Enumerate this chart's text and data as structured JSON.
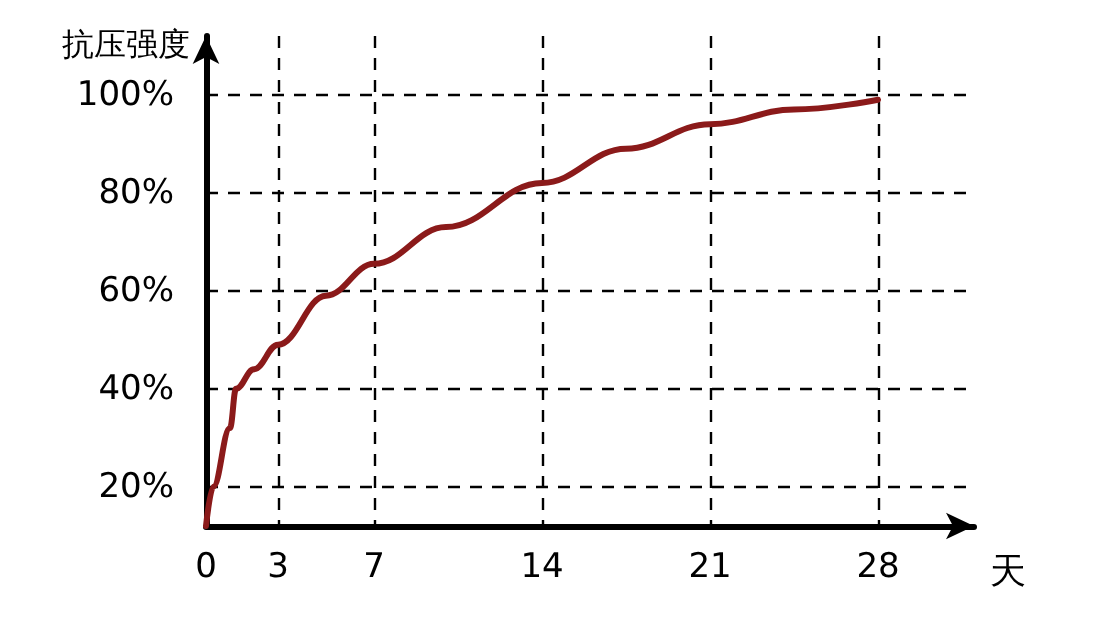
{
  "chart_data": {
    "type": "line",
    "xlabel": "天",
    "ylabel": "抗压强度",
    "x": [
      0,
      0.3,
      1,
      1.25,
      2,
      3,
      5,
      7,
      10,
      14,
      17.5,
      21,
      24.5,
      28
    ],
    "series": [
      {
        "color": "#8b1a1a",
        "values": [
          12,
          20,
          32,
          40,
          44,
          49,
          59,
          65.5,
          73,
          82,
          89,
          94,
          97,
          99
        ]
      }
    ],
    "xlim": [
      0,
      32
    ],
    "xticks": [
      0,
      3,
      7,
      14,
      21,
      28
    ],
    "ylim": [
      12,
      112
    ],
    "yticks": [
      {
        "value": 20,
        "label": "20%"
      },
      {
        "value": 40,
        "label": "40%"
      },
      {
        "value": 60,
        "label": "60%"
      },
      {
        "value": 80,
        "label": "80%"
      },
      {
        "value": 100,
        "label": "100%"
      }
    ],
    "grid": true,
    "marker": "none",
    "line_style": "solid"
  }
}
